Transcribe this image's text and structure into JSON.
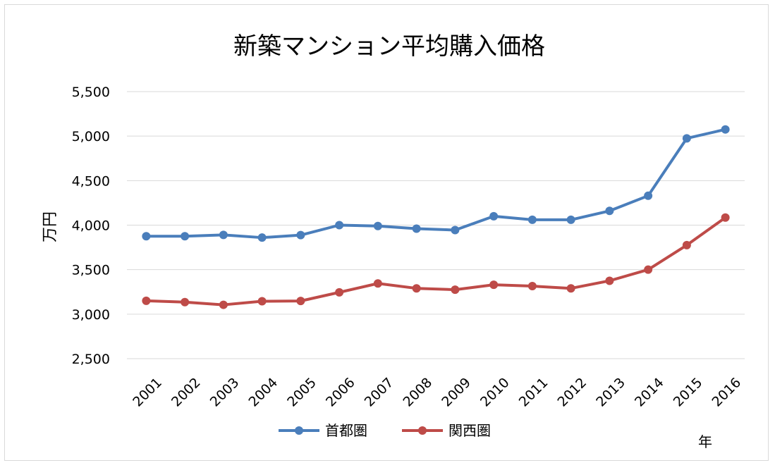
{
  "chart_data": {
    "type": "line",
    "title": "新築マンション平均購入価格",
    "ylabel": "万円",
    "xlabel": "年",
    "categories": [
      "2001",
      "2002",
      "2003",
      "2004",
      "2005",
      "2006",
      "2007",
      "2008",
      "2009",
      "2010",
      "2011",
      "2012",
      "2013",
      "2014",
      "2015",
      "2016"
    ],
    "ylim": [
      2500,
      5500
    ],
    "yticks": [
      "2,500",
      "3,000",
      "3,500",
      "4,000",
      "4,500",
      "5,000",
      "5,500"
    ],
    "grid": true,
    "legend_position": "bottom",
    "series": [
      {
        "name": "首都圏",
        "color": "#4a7ebb",
        "values": [
          3875,
          3875,
          3890,
          3860,
          3888,
          4000,
          3990,
          3960,
          3945,
          4100,
          4060,
          4060,
          4160,
          4330,
          4975,
          5075
        ]
      },
      {
        "name": "関西圏",
        "color": "#be4b48",
        "values": [
          3150,
          3135,
          3105,
          3145,
          3148,
          3245,
          3345,
          3290,
          3275,
          3330,
          3315,
          3290,
          3375,
          3500,
          3775,
          4085
        ]
      }
    ]
  }
}
